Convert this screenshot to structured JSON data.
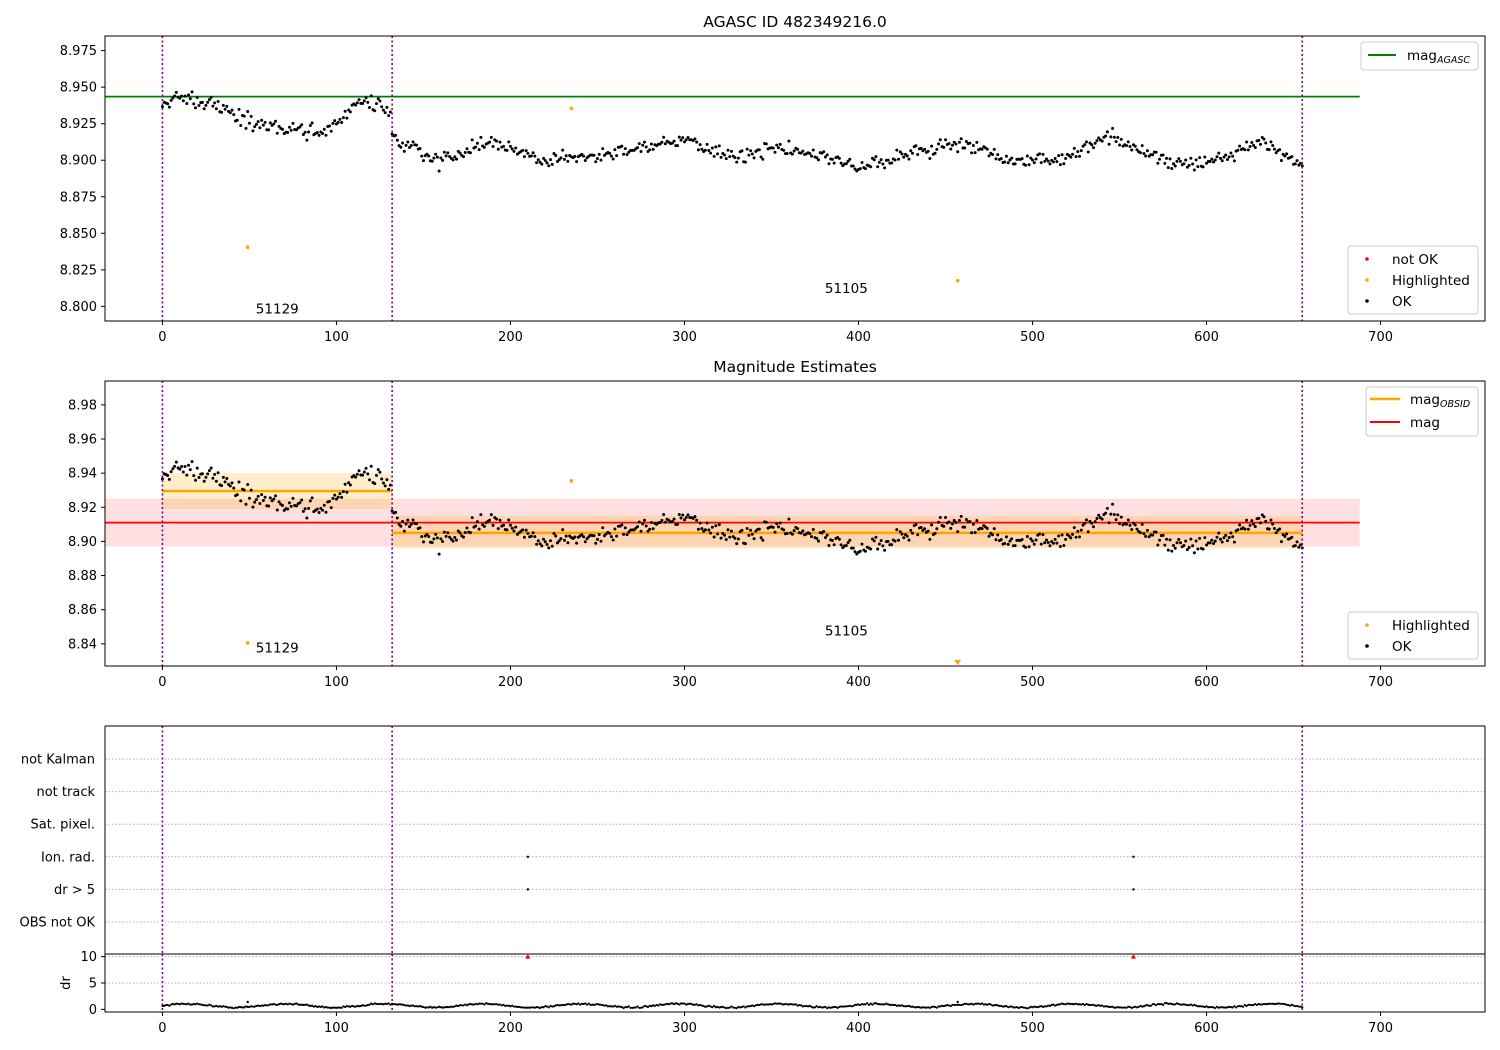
{
  "figure": {
    "background": "#ffffff",
    "colors": {
      "ok": "#000000",
      "highlighted": "#ffa500",
      "not_ok": "#ff0000",
      "mag_agasc_line": "#008000",
      "mag_line": "#ff0000",
      "mag_obsid_line": "#ffa500",
      "obs_boundary": "#800080",
      "grid": "#b0b0b0"
    }
  },
  "chart_data": [
    {
      "panel": "top",
      "type": "scatter",
      "title": "AGASC ID 482349216.0",
      "xlim": [
        -33,
        760
      ],
      "ylim": [
        8.79,
        8.985
      ],
      "xticks": [
        0,
        100,
        200,
        300,
        400,
        500,
        600,
        700
      ],
      "yticks": [
        8.8,
        8.825,
        8.85,
        8.875,
        8.9,
        8.925,
        8.95,
        8.975
      ],
      "ytick_labels": [
        "8.800",
        "8.825",
        "8.850",
        "8.875",
        "8.900",
        "8.925",
        "8.950",
        "8.975"
      ],
      "obs_boundaries": [
        0,
        132,
        655
      ],
      "obs_labels": [
        {
          "text": "51129",
          "x": 66,
          "y": 8.795
        },
        {
          "text": "51105",
          "x": 393,
          "y": 8.809
        }
      ],
      "mag_agasc": {
        "value": 8.9435,
        "x_range": [
          -33,
          688
        ]
      },
      "highlighted_points": [
        {
          "x": 49,
          "y": 8.8405
        },
        {
          "x": 235,
          "y": 8.9355
        },
        {
          "x": 457,
          "y": 8.8175
        }
      ],
      "not_ok_points": [],
      "segments": [
        {
          "x_start": 0,
          "x_end": 131,
          "mean": 8.929,
          "std": 0.011,
          "trend": [
            [
              0,
              8.935
            ],
            [
              12,
              8.943
            ],
            [
              30,
              8.938
            ],
            [
              45,
              8.928
            ],
            [
              70,
              8.921
            ],
            [
              90,
              8.919
            ],
            [
              100,
              8.924
            ],
            [
              110,
              8.938
            ],
            [
              125,
              8.938
            ],
            [
              131,
              8.93
            ]
          ],
          "noise": 0.0055
        },
        {
          "x_start": 132,
          "x_end": 655,
          "mean": 8.905,
          "std": 0.01,
          "trend": [
            [
              132,
              8.914
            ],
            [
              160,
              8.899
            ],
            [
              190,
              8.913
            ],
            [
              220,
              8.899
            ],
            [
              260,
              8.906
            ],
            [
              300,
              8.913
            ],
            [
              330,
              8.903
            ],
            [
              360,
              8.909
            ],
            [
              400,
              8.894
            ],
            [
              430,
              8.906
            ],
            [
              460,
              8.911
            ],
            [
              490,
              8.898
            ],
            [
              520,
              8.902
            ],
            [
              545,
              8.917
            ],
            [
              580,
              8.897
            ],
            [
              610,
              8.901
            ],
            [
              630,
              8.914
            ],
            [
              655,
              8.897
            ]
          ],
          "noise": 0.005
        }
      ],
      "legends": [
        {
          "position": "upper-right",
          "entries": [
            {
              "label": "mag",
              "sub": "AGASC",
              "kind": "line",
              "color": "#008000"
            }
          ]
        },
        {
          "position": "lower-right",
          "entries": [
            {
              "label": "not OK",
              "kind": "point",
              "color": "#ff0000"
            },
            {
              "label": "Highlighted",
              "kind": "point",
              "color": "#ffa500"
            },
            {
              "label": "OK",
              "kind": "point",
              "color": "#000000"
            }
          ]
        }
      ]
    },
    {
      "panel": "middle",
      "type": "scatter",
      "title": "Magnitude Estimates",
      "xlim": [
        -33,
        760
      ],
      "ylim": [
        8.827,
        8.994
      ],
      "xticks": [
        0,
        100,
        200,
        300,
        400,
        500,
        600,
        700
      ],
      "yticks": [
        8.84,
        8.86,
        8.88,
        8.9,
        8.92,
        8.94,
        8.96,
        8.98
      ],
      "ytick_labels": [
        "8.84",
        "8.86",
        "8.88",
        "8.90",
        "8.92",
        "8.94",
        "8.96",
        "8.98"
      ],
      "obs_boundaries": [
        0,
        132,
        655
      ],
      "obs_labels": [
        {
          "text": "51129",
          "x": 66,
          "y": 8.835
        },
        {
          "text": "51105",
          "x": 393,
          "y": 8.845
        }
      ],
      "mag": {
        "value": 8.911,
        "band": [
          8.897,
          8.925
        ],
        "x_range": [
          -33,
          688
        ]
      },
      "mag_obsid": [
        {
          "value": 8.9295,
          "band": [
            8.919,
            8.94
          ],
          "x_range": [
            0,
            132
          ]
        },
        {
          "value": 8.905,
          "band": [
            8.896,
            8.915
          ],
          "x_range": [
            132,
            655
          ]
        }
      ],
      "highlighted_points": [
        {
          "x": 49,
          "y": 8.8405
        },
        {
          "x": 235,
          "y": 8.9355
        }
      ],
      "offscale_marker": {
        "x": 457,
        "direction": "down"
      },
      "legends": [
        {
          "position": "upper-right",
          "entries": [
            {
              "label": "mag",
              "sub": "OBSID",
              "kind": "line",
              "color": "#ffa500"
            },
            {
              "label": "mag",
              "kind": "line",
              "color": "#ff0000"
            }
          ]
        },
        {
          "position": "lower-right",
          "entries": [
            {
              "label": "Highlighted",
              "kind": "point",
              "color": "#ffa500"
            },
            {
              "label": "OK",
              "kind": "point",
              "color": "#000000"
            }
          ]
        }
      ]
    },
    {
      "panel": "flags",
      "type": "scatter",
      "xlim": [
        -33,
        760
      ],
      "obs_boundaries": [
        0,
        132,
        655
      ],
      "categories": [
        "not Kalman",
        "not track",
        "Sat. pixel.",
        "Ion. rad.",
        "dr > 5",
        "OBS not OK"
      ],
      "points": [
        {
          "category": "Ion. rad.",
          "x": 210
        },
        {
          "category": "Ion. rad.",
          "x": 558
        },
        {
          "category": "dr > 5",
          "x": 210
        },
        {
          "category": "dr > 5",
          "x": 558
        }
      ]
    },
    {
      "panel": "dr",
      "type": "scatter",
      "xlim": [
        -33,
        760
      ],
      "ylim": [
        -0.5,
        10.5
      ],
      "ylabel": "dr",
      "xticks": [
        0,
        100,
        200,
        300,
        400,
        500,
        600,
        700
      ],
      "yticks": [
        0,
        5,
        10
      ],
      "obs_boundaries": [
        0,
        132,
        655
      ],
      "clipped_points": [
        {
          "x": 210,
          "y": 10
        },
        {
          "x": 558,
          "y": 10
        }
      ],
      "outliers": [
        {
          "x": 49,
          "y": 1.4
        },
        {
          "x": 457,
          "y": 1.4
        }
      ],
      "typical_range": [
        0.2,
        1.2
      ]
    }
  ]
}
